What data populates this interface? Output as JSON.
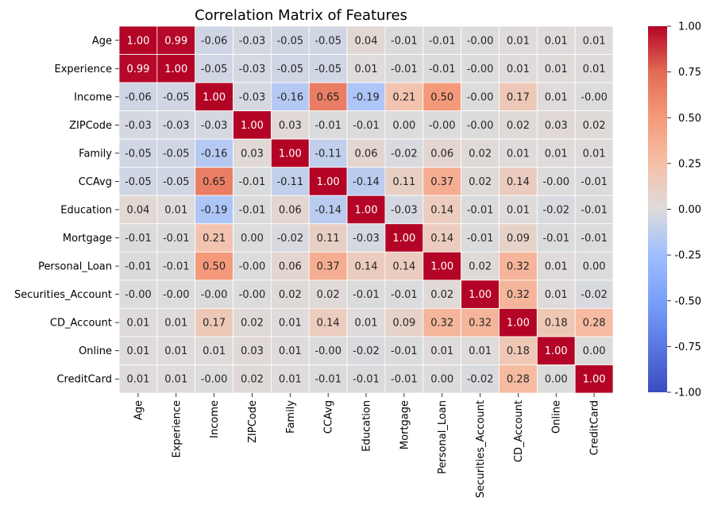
{
  "chart_data": {
    "type": "heatmap",
    "title": "Correlation Matrix of Features",
    "colormap": "coolwarm",
    "vmin": -1.0,
    "vmax": 1.0,
    "labels": [
      "Age",
      "Experience",
      "Income",
      "ZIPCode",
      "Family",
      "CCAvg",
      "Education",
      "Mortgage",
      "Personal_Loan",
      "Securities_Account",
      "CD_Account",
      "Online",
      "CreditCard"
    ],
    "matrix": [
      [
        1.0,
        0.99,
        -0.06,
        -0.03,
        -0.05,
        -0.05,
        0.04,
        -0.01,
        -0.01,
        -0.0,
        0.01,
        0.01,
        0.01
      ],
      [
        0.99,
        1.0,
        -0.05,
        -0.03,
        -0.05,
        -0.05,
        0.01,
        -0.01,
        -0.01,
        -0.0,
        0.01,
        0.01,
        0.01
      ],
      [
        -0.06,
        -0.05,
        1.0,
        -0.03,
        -0.16,
        0.65,
        -0.19,
        0.21,
        0.5,
        -0.0,
        0.17,
        0.01,
        -0.0
      ],
      [
        -0.03,
        -0.03,
        -0.03,
        1.0,
        0.03,
        -0.01,
        -0.01,
        0.0,
        -0.0,
        -0.0,
        0.02,
        0.03,
        0.02
      ],
      [
        -0.05,
        -0.05,
        -0.16,
        0.03,
        1.0,
        -0.11,
        0.06,
        -0.02,
        0.06,
        0.02,
        0.01,
        0.01,
        0.01
      ],
      [
        -0.05,
        -0.05,
        0.65,
        -0.01,
        -0.11,
        1.0,
        -0.14,
        0.11,
        0.37,
        0.02,
        0.14,
        -0.0,
        -0.01
      ],
      [
        0.04,
        0.01,
        -0.19,
        -0.01,
        0.06,
        -0.14,
        1.0,
        -0.03,
        0.14,
        -0.01,
        0.01,
        -0.02,
        -0.01
      ],
      [
        -0.01,
        -0.01,
        0.21,
        0.0,
        -0.02,
        0.11,
        -0.03,
        1.0,
        0.14,
        -0.01,
        0.09,
        -0.01,
        -0.01
      ],
      [
        -0.01,
        -0.01,
        0.5,
        -0.0,
        0.06,
        0.37,
        0.14,
        0.14,
        1.0,
        0.02,
        0.32,
        0.01,
        0.0
      ],
      [
        -0.0,
        -0.0,
        -0.0,
        -0.0,
        0.02,
        0.02,
        -0.01,
        -0.01,
        0.02,
        1.0,
        0.32,
        0.01,
        -0.02
      ],
      [
        0.01,
        0.01,
        0.17,
        0.02,
        0.01,
        0.14,
        0.01,
        0.09,
        0.32,
        0.32,
        1.0,
        0.18,
        0.28
      ],
      [
        0.01,
        0.01,
        0.01,
        0.03,
        0.01,
        -0.0,
        -0.02,
        -0.01,
        0.01,
        0.01,
        0.18,
        1.0,
        0.0
      ],
      [
        0.01,
        0.01,
        -0.0,
        0.02,
        0.01,
        -0.01,
        -0.01,
        -0.01,
        0.0,
        -0.02,
        0.28,
        0.0,
        1.0
      ]
    ],
    "display_values": [
      [
        "1.00",
        "0.99",
        "-0.06",
        "-0.03",
        "-0.05",
        "-0.05",
        "0.04",
        "-0.01",
        "-0.01",
        "-0.00",
        "0.01",
        "0.01",
        "0.01"
      ],
      [
        "0.99",
        "1.00",
        "-0.05",
        "-0.03",
        "-0.05",
        "-0.05",
        "0.01",
        "-0.01",
        "-0.01",
        "-0.00",
        "0.01",
        "0.01",
        "0.01"
      ],
      [
        "-0.06",
        "-0.05",
        "1.00",
        "-0.03",
        "-0.16",
        "0.65",
        "-0.19",
        "0.21",
        "0.50",
        "-0.00",
        "0.17",
        "0.01",
        "-0.00"
      ],
      [
        "-0.03",
        "-0.03",
        "-0.03",
        "1.00",
        "0.03",
        "-0.01",
        "-0.01",
        "0.00",
        "-0.00",
        "-0.00",
        "0.02",
        "0.03",
        "0.02"
      ],
      [
        "-0.05",
        "-0.05",
        "-0.16",
        "0.03",
        "1.00",
        "-0.11",
        "0.06",
        "-0.02",
        "0.06",
        "0.02",
        "0.01",
        "0.01",
        "0.01"
      ],
      [
        "-0.05",
        "-0.05",
        "0.65",
        "-0.01",
        "-0.11",
        "1.00",
        "-0.14",
        "0.11",
        "0.37",
        "0.02",
        "0.14",
        "-0.00",
        "-0.01"
      ],
      [
        "0.04",
        "0.01",
        "-0.19",
        "-0.01",
        "0.06",
        "-0.14",
        "1.00",
        "-0.03",
        "0.14",
        "-0.01",
        "0.01",
        "-0.02",
        "-0.01"
      ],
      [
        "-0.01",
        "-0.01",
        "0.21",
        "0.00",
        "-0.02",
        "0.11",
        "-0.03",
        "1.00",
        "0.14",
        "-0.01",
        "0.09",
        "-0.01",
        "-0.01"
      ],
      [
        "-0.01",
        "-0.01",
        "0.50",
        "-0.00",
        "0.06",
        "0.37",
        "0.14",
        "0.14",
        "1.00",
        "0.02",
        "0.32",
        "0.01",
        "0.00"
      ],
      [
        "-0.00",
        "-0.00",
        "-0.00",
        "-0.00",
        "0.02",
        "0.02",
        "-0.01",
        "-0.01",
        "0.02",
        "1.00",
        "0.32",
        "0.01",
        "-0.02"
      ],
      [
        "0.01",
        "0.01",
        "0.17",
        "0.02",
        "0.01",
        "0.14",
        "0.01",
        "0.09",
        "0.32",
        "0.32",
        "1.00",
        "0.18",
        "0.28"
      ],
      [
        "0.01",
        "0.01",
        "0.01",
        "0.03",
        "0.01",
        "-0.00",
        "-0.02",
        "-0.01",
        "0.01",
        "0.01",
        "0.18",
        "1.00",
        "0.00"
      ],
      [
        "0.01",
        "0.01",
        "-0.00",
        "0.02",
        "0.01",
        "-0.01",
        "-0.01",
        "-0.01",
        "0.00",
        "-0.02",
        "0.28",
        "0.00",
        "1.00"
      ]
    ],
    "colorbar_ticks": [
      "1.00",
      "0.75",
      "0.50",
      "0.25",
      "0.00",
      "-0.25",
      "-0.50",
      "-0.75",
      "-1.00"
    ],
    "colorbar_tick_values": [
      1.0,
      0.75,
      0.5,
      0.25,
      0.0,
      -0.25,
      -0.5,
      -0.75,
      -1.0
    ]
  }
}
